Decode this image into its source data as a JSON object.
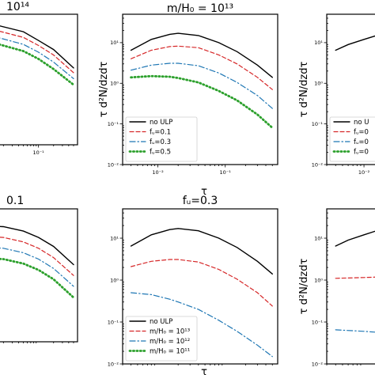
{
  "chart_data": [
    {
      "type": "line",
      "panel": "top-left",
      "title": "10¹⁴",
      "xlabel": "",
      "ylabel": "",
      "xscale": "log",
      "yscale": "log",
      "xlim": [
        0.004,
        0.6
      ],
      "ylim": [
        0.01,
        50
      ],
      "xticks": [
        {
          "v": 0.1,
          "label": "10⁻¹"
        }
      ],
      "yticks": [],
      "legend": null,
      "series": [
        {
          "name": "no ULP",
          "color": "#000000",
          "dash": "solid",
          "x": [
            0.004,
            0.01,
            0.05,
            0.1,
            0.2,
            0.5
          ],
          "y": [
            30,
            28,
            16,
            9,
            5,
            1.5
          ]
        },
        {
          "name": "f_u=0.1",
          "color": "#d62728",
          "dash": "dashed",
          "x": [
            0.004,
            0.01,
            0.05,
            0.1,
            0.2,
            0.5
          ],
          "y": [
            22,
            20,
            11,
            6.5,
            3.5,
            1.1
          ]
        },
        {
          "name": "f_u=0.3",
          "color": "#1f77b4",
          "dash": "dashdot",
          "x": [
            0.004,
            0.01,
            0.05,
            0.1,
            0.2,
            0.5
          ],
          "y": [
            14,
            13,
            7,
            4.2,
            2.2,
            0.75
          ]
        },
        {
          "name": "f_u=0.5",
          "color": "#2ca02c",
          "dash": "dotted",
          "x": [
            0.004,
            0.01,
            0.05,
            0.1,
            0.2,
            0.5
          ],
          "y": [
            9,
            8.5,
            4.5,
            2.7,
            1.4,
            0.5
          ]
        }
      ]
    },
    {
      "type": "line",
      "panel": "top-middle",
      "title": "m/H₀ = 10¹³",
      "xlabel": "τ",
      "ylabel": "τ d²N/dzdτ",
      "xscale": "log",
      "yscale": "log",
      "xlim": [
        0.003,
        0.6
      ],
      "ylim": [
        0.01,
        50
      ],
      "xticks": [
        {
          "v": 0.01,
          "label": "10⁻²"
        },
        {
          "v": 0.1,
          "label": "10⁻¹"
        }
      ],
      "yticks": [
        {
          "v": 0.01,
          "label": "10⁻²"
        },
        {
          "v": 0.1,
          "label": "10⁻¹"
        },
        {
          "v": 1,
          "label": "10⁰"
        },
        {
          "v": 10,
          "label": "10¹"
        }
      ],
      "legend": {
        "placement": "lower-left",
        "entries": [
          "no ULP",
          "fᵤ=0.1",
          "fᵤ=0.3",
          "fᵤ=0.5"
        ]
      },
      "series": [
        {
          "name": "no ULP",
          "color": "#000000",
          "dash": "solid",
          "x": [
            0.004,
            0.008,
            0.015,
            0.02,
            0.04,
            0.08,
            0.15,
            0.3,
            0.5
          ],
          "y": [
            6.5,
            12,
            16,
            17,
            15,
            10,
            6,
            2.8,
            1.4
          ]
        },
        {
          "name": "fᵤ=0.1",
          "color": "#d62728",
          "dash": "dashed",
          "x": [
            0.004,
            0.008,
            0.015,
            0.02,
            0.04,
            0.08,
            0.15,
            0.3,
            0.5
          ],
          "y": [
            4,
            6.5,
            8,
            8.2,
            7.5,
            5,
            3,
            1.4,
            0.7
          ]
        },
        {
          "name": "fᵤ=0.3",
          "color": "#1f77b4",
          "dash": "dashdot",
          "x": [
            0.004,
            0.008,
            0.015,
            0.02,
            0.04,
            0.08,
            0.15,
            0.3,
            0.5
          ],
          "y": [
            2.1,
            2.8,
            3.1,
            3.1,
            2.7,
            1.8,
            1.05,
            0.5,
            0.24
          ]
        },
        {
          "name": "fᵤ=0.5",
          "color": "#2ca02c",
          "dash": "dotted",
          "x": [
            0.004,
            0.008,
            0.015,
            0.02,
            0.04,
            0.08,
            0.15,
            0.3,
            0.5
          ],
          "y": [
            1.4,
            1.5,
            1.45,
            1.35,
            1.05,
            0.65,
            0.38,
            0.17,
            0.08
          ]
        }
      ]
    },
    {
      "type": "line",
      "panel": "top-right",
      "title": "",
      "xlabel": "",
      "ylabel": "τ d²N/dzdτ",
      "xscale": "log",
      "yscale": "log",
      "xlim": [
        0.003,
        0.03
      ],
      "ylim": [
        0.01,
        50
      ],
      "xticks": [
        {
          "v": 0.01,
          "label": "10⁻²"
        }
      ],
      "yticks": [
        {
          "v": 0.01,
          "label": "10⁻²"
        },
        {
          "v": 0.1,
          "label": "10⁻¹"
        },
        {
          "v": 1,
          "label": "10⁰"
        },
        {
          "v": 10,
          "label": "10¹"
        }
      ],
      "legend": {
        "placement": "lower-left",
        "entries": [
          "no U",
          "fᵤ=0",
          "fᵤ=0",
          "fᵤ=0"
        ]
      },
      "series": [
        {
          "name": "no ULP",
          "color": "#000000",
          "dash": "solid",
          "x": [
            0.004,
            0.006,
            0.01,
            0.015,
            0.02,
            0.03
          ],
          "y": [
            6.5,
            9,
            12,
            15,
            17,
            18
          ]
        },
        {
          "name": "fᵤ=0.1",
          "color": "#d62728",
          "dash": "dashed",
          "x": [
            0.015,
            0.02,
            0.03
          ],
          "y": [
            0.6,
            0.9,
            1.3
          ]
        }
      ]
    },
    {
      "type": "line",
      "panel": "bottom-left",
      "title": "0.1",
      "xlabel": "",
      "ylabel": "",
      "xscale": "log",
      "yscale": "log",
      "xlim": [
        0.004,
        0.6
      ],
      "ylim": [
        0.01,
        50
      ],
      "xticks": [],
      "yticks": [],
      "legend": null,
      "series": [
        {
          "name": "no ULP",
          "color": "#000000",
          "dash": "solid",
          "x": [
            0.004,
            0.02,
            0.05,
            0.1,
            0.2,
            0.5
          ],
          "y": [
            18,
            16,
            12,
            8,
            4.5,
            1.4
          ]
        },
        {
          "name": "m/H₀=10¹³",
          "color": "#d62728",
          "dash": "dashed",
          "x": [
            0.004,
            0.02,
            0.05,
            0.1,
            0.2,
            0.5
          ],
          "y": [
            9,
            8,
            6,
            4,
            2.2,
            0.7
          ]
        },
        {
          "name": "m/H₀=10¹²",
          "color": "#1f77b4",
          "dash": "dashdot",
          "x": [
            0.004,
            0.02,
            0.05,
            0.1,
            0.2,
            0.5
          ],
          "y": [
            4.5,
            4,
            3,
            2,
            1.1,
            0.35
          ]
        },
        {
          "name": "m/H₀=10¹¹",
          "color": "#2ca02c",
          "dash": "dotted",
          "x": [
            0.004,
            0.02,
            0.05,
            0.1,
            0.2,
            0.5
          ],
          "y": [
            2.2,
            2,
            1.5,
            1,
            0.55,
            0.17
          ]
        }
      ]
    },
    {
      "type": "line",
      "panel": "bottom-middle",
      "title": "fᵤ=0.3",
      "xlabel": "τ",
      "ylabel": "",
      "xscale": "log",
      "yscale": "log",
      "xlim": [
        0.003,
        0.6
      ],
      "ylim": [
        0.01,
        50
      ],
      "xticks": [],
      "yticks": [
        {
          "v": 0.01,
          "label": "10⁻²"
        },
        {
          "v": 0.1,
          "label": "10⁻¹"
        },
        {
          "v": 1,
          "label": "10⁰"
        },
        {
          "v": 10,
          "label": "10¹"
        }
      ],
      "legend": {
        "placement": "lower-left",
        "entries": [
          "no ULP",
          "m/H₀ = 10¹³",
          "m/H₀ = 10¹²",
          "m/H₀ = 10¹¹"
        ]
      },
      "series": [
        {
          "name": "no ULP",
          "color": "#000000",
          "dash": "solid",
          "x": [
            0.004,
            0.008,
            0.015,
            0.02,
            0.04,
            0.08,
            0.15,
            0.3,
            0.5
          ],
          "y": [
            6.5,
            12,
            16,
            17,
            15,
            10,
            6,
            2.8,
            1.4
          ]
        },
        {
          "name": "m/H₀ = 10¹³",
          "color": "#d62728",
          "dash": "dashed",
          "x": [
            0.004,
            0.008,
            0.015,
            0.02,
            0.04,
            0.08,
            0.15,
            0.3,
            0.5
          ],
          "y": [
            2.1,
            2.8,
            3.1,
            3.1,
            2.7,
            1.8,
            1.05,
            0.5,
            0.24
          ]
        },
        {
          "name": "m/H₀ = 10¹²",
          "color": "#1f77b4",
          "dash": "dashdot",
          "x": [
            0.004,
            0.008,
            0.015,
            0.02,
            0.04,
            0.08,
            0.15,
            0.3,
            0.5
          ],
          "y": [
            0.5,
            0.45,
            0.35,
            0.3,
            0.2,
            0.11,
            0.06,
            0.028,
            0.015
          ]
        }
      ]
    },
    {
      "type": "line",
      "panel": "bottom-right",
      "title": "",
      "xlabel": "",
      "ylabel": "τ d²N/dzdτ",
      "xscale": "log",
      "yscale": "log",
      "xlim": [
        0.003,
        0.03
      ],
      "ylim": [
        0.01,
        50
      ],
      "xticks": [],
      "yticks": [
        {
          "v": 0.01,
          "label": "10⁻²"
        },
        {
          "v": 0.1,
          "label": "10⁻¹"
        },
        {
          "v": 1,
          "label": "10⁰"
        },
        {
          "v": 10,
          "label": "10¹"
        }
      ],
      "legend": null,
      "series": [
        {
          "name": "no ULP",
          "color": "#000000",
          "dash": "solid",
          "x": [
            0.004,
            0.006,
            0.01,
            0.015,
            0.02,
            0.03
          ],
          "y": [
            6.5,
            9,
            12,
            15,
            17,
            18
          ]
        },
        {
          "name": "m/H₀ = 10¹³",
          "color": "#d62728",
          "dash": "dashed",
          "x": [
            0.004,
            0.01,
            0.02,
            0.03
          ],
          "y": [
            1.1,
            1.15,
            1.2,
            1.25
          ]
        },
        {
          "name": "m/H₀ = 10¹²",
          "color": "#1f77b4",
          "dash": "dashdot",
          "x": [
            0.004,
            0.01,
            0.02,
            0.03
          ],
          "y": [
            0.065,
            0.06,
            0.055,
            0.05
          ]
        }
      ]
    }
  ]
}
